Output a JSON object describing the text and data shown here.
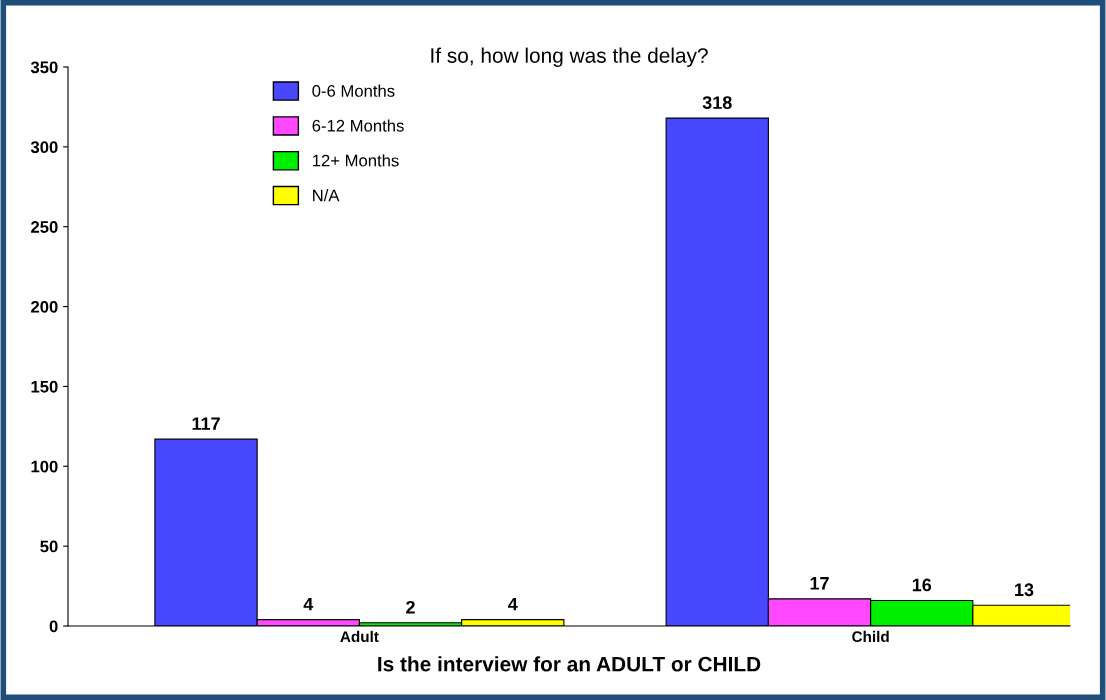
{
  "chart_data": {
    "type": "bar",
    "title": "If so, how long was the delay?",
    "xlabel": "Is the interview for an ADULT or CHILD",
    "categories": [
      "Adult",
      "Child"
    ],
    "series": [
      {
        "name": "0-6 Months",
        "color": "#4848ff",
        "values": [
          117,
          318
        ]
      },
      {
        "name": "6-12 Months",
        "color": "#ff48ff",
        "values": [
          4,
          17
        ]
      },
      {
        "name": "12+ Months",
        "color": "#00ee00",
        "values": [
          2,
          16
        ]
      },
      {
        "name": "N/A",
        "color": "#ffff00",
        "values": [
          4,
          13
        ]
      }
    ],
    "ylim": [
      0,
      350
    ],
    "yticks": [
      0,
      50,
      100,
      150,
      200,
      250,
      300,
      350
    ],
    "data_labels": true,
    "grid": false,
    "legend": "top left"
  }
}
